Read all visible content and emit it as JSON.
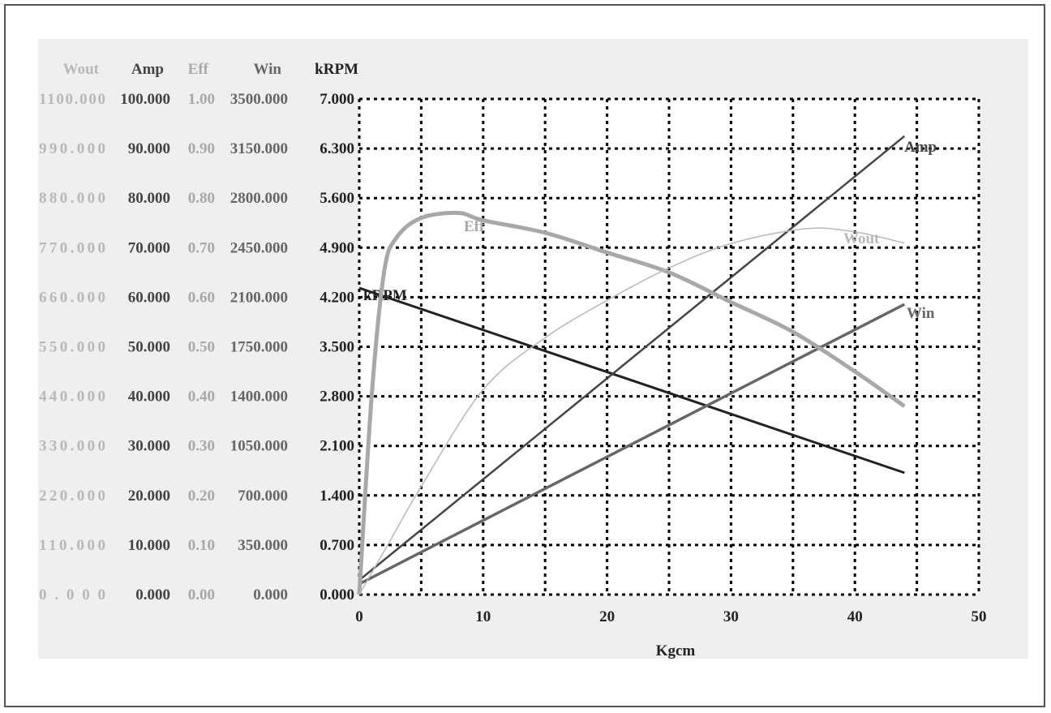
{
  "chart_data": {
    "type": "line",
    "xlabel": "Kgcm",
    "xlim": [
      0,
      50
    ],
    "xticks": [
      "0",
      "10",
      "20",
      "30",
      "40",
      "50"
    ],
    "grid": true,
    "axes": [
      {
        "name": "Wout",
        "max": 1100,
        "color": "#b8b8b8",
        "ticks": [
          "0.000",
          "110.000",
          "220.000",
          "330.000",
          "440.000",
          "550.000",
          "660.000",
          "770.000",
          "880.000",
          "990.000",
          "1100.000"
        ]
      },
      {
        "name": "Amp",
        "max": 100,
        "color": "#444444",
        "ticks": [
          "0.000",
          "10.000",
          "20.000",
          "30.000",
          "40.000",
          "50.000",
          "60.000",
          "70.000",
          "80.000",
          "90.000",
          "100.000"
        ]
      },
      {
        "name": "Eff",
        "max": 1,
        "color": "#a8a8a8",
        "ticks": [
          "0.00",
          "0.10",
          "0.20",
          "0.30",
          "0.40",
          "0.50",
          "0.60",
          "0.70",
          "0.80",
          "0.90",
          "1.00"
        ]
      },
      {
        "name": "Win",
        "max": 3500,
        "color": "#666666",
        "ticks": [
          "0.000",
          "350.000",
          "700.000",
          "1050.000",
          "1400.000",
          "1750.000",
          "2100.000",
          "2450.000",
          "2800.000",
          "3150.000",
          "3500.000"
        ]
      },
      {
        "name": "kRPM",
        "max": 7,
        "color": "#222222",
        "ticks": [
          "0.000",
          "0.700",
          "1.400",
          "2.100",
          "2.800",
          "3.500",
          "4.200",
          "4.900",
          "5.600",
          "6.300",
          "7.000"
        ]
      }
    ],
    "series": [
      {
        "name": "kRPM",
        "axis": 4,
        "x": [
          0,
          44
        ],
        "y": [
          4.33,
          1.72
        ]
      },
      {
        "name": "Amp",
        "axis": 1,
        "x": [
          0,
          44
        ],
        "y": [
          2.9,
          92.5
        ]
      },
      {
        "name": "Win",
        "axis": 3,
        "x": [
          0,
          44
        ],
        "y": [
          75,
          2050
        ]
      },
      {
        "name": "Eff",
        "axis": 2,
        "x": [
          0,
          1,
          2,
          3,
          5,
          8,
          10,
          15,
          20,
          25,
          30,
          35,
          40,
          44
        ],
        "y": [
          0,
          0.4,
          0.65,
          0.72,
          0.76,
          0.77,
          0.755,
          0.73,
          0.69,
          0.65,
          0.59,
          0.53,
          0.45,
          0.38
        ]
      },
      {
        "name": "Wout",
        "axis": 0,
        "x": [
          0,
          2.5,
          5,
          10,
          15,
          20,
          25,
          30,
          36,
          40,
          44
        ],
        "y": [
          0,
          120,
          240,
          455,
          570,
          653,
          725,
          779,
          812,
          805,
          780
        ]
      }
    ]
  }
}
